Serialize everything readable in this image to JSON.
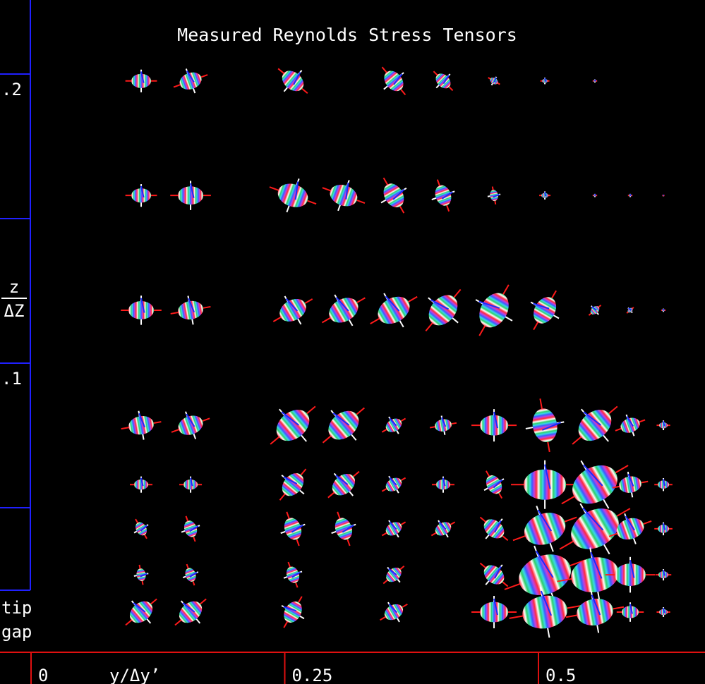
{
  "chart_data": {
    "type": "glyph",
    "title": "Measured Reynolds Stress Tensors",
    "x_label": "y/Δy’",
    "y_label": {
      "numerator": "z",
      "denominator": "ΔZ"
    },
    "annotation": [
      "tip",
      "gap"
    ],
    "xlim": [
      -0.0306,
      0.6641
    ],
    "ylim": [
      0,
      0.2256
    ],
    "xticks": [
      0,
      0.25,
      0.5
    ],
    "yticks": [
      {
        "value": 0.2,
        "label": ".2"
      },
      {
        "value": 0.1,
        "label": ".1"
      }
    ],
    "yticks_minor": [
      0.15,
      0.05
    ],
    "glyphs": {
      "x": [
        0.1085,
        0.1572,
        0.258,
        0.3574,
        0.4061,
        0.4562,
        0.5063,
        0.5556,
        0.1085,
        0.1572,
        0.258,
        0.308,
        0.3574,
        0.4061,
        0.4562,
        0.5063,
        0.5556,
        0.5904,
        0.6231,
        0.1085,
        0.1572,
        0.258,
        0.308,
        0.3574,
        0.4061,
        0.4562,
        0.5063,
        0.5556,
        0.5904,
        0.6231,
        0.1085,
        0.1572,
        0.258,
        0.308,
        0.3574,
        0.4061,
        0.4562,
        0.5063,
        0.5556,
        0.5904,
        0.6231,
        0.1085,
        0.1572,
        0.258,
        0.308,
        0.3574,
        0.4061,
        0.4562,
        0.5063,
        0.5556,
        0.5904,
        0.6231,
        0.1085,
        0.1572,
        0.258,
        0.308,
        0.3574,
        0.4061,
        0.4562,
        0.5063,
        0.5556,
        0.5904,
        0.6231,
        0.1085,
        0.1572,
        0.258,
        0.3574,
        0.4562,
        0.5063,
        0.5556,
        0.5904,
        0.6231,
        0.1085,
        0.1572,
        0.258,
        0.3574,
        0.4562,
        0.5063,
        0.5556,
        0.5904,
        0.6231
      ],
      "z": [
        0.1976,
        0.1976,
        0.1976,
        0.1976,
        0.1976,
        0.1976,
        0.1976,
        0.1976,
        0.158,
        0.158,
        0.158,
        0.158,
        0.158,
        0.158,
        0.158,
        0.158,
        0.158,
        0.158,
        0.158,
        0.1183,
        0.1183,
        0.1183,
        0.1183,
        0.1183,
        0.1183,
        0.1183,
        0.1183,
        0.1183,
        0.1183,
        0.1183,
        0.0785,
        0.0785,
        0.0785,
        0.0785,
        0.0785,
        0.0785,
        0.0785,
        0.0785,
        0.0785,
        0.0785,
        0.0785,
        0.058,
        0.058,
        0.058,
        0.058,
        0.058,
        0.058,
        0.058,
        0.058,
        0.058,
        0.058,
        0.058,
        0.0427,
        0.0427,
        0.0427,
        0.0427,
        0.0427,
        0.0427,
        0.0427,
        0.0427,
        0.0427,
        0.0427,
        0.0427,
        0.0268,
        0.0268,
        0.0268,
        0.0268,
        0.0268,
        0.0268,
        0.0268,
        0.0268,
        0.0268,
        0.0139,
        0.0139,
        0.0139,
        0.0139,
        0.0139,
        0.0139,
        0.0139,
        0.0139,
        0.0139
      ],
      "size": [
        14,
        16,
        17,
        16,
        12,
        6,
        4,
        2,
        14,
        18,
        22,
        20,
        18,
        15,
        8,
        5,
        2,
        2,
        1,
        18,
        18,
        20,
        22,
        24,
        24,
        26,
        20,
        7,
        4,
        2,
        18,
        18,
        26,
        24,
        12,
        12,
        20,
        24,
        26,
        14,
        6,
        10,
        10,
        18,
        18,
        12,
        10,
        14,
        30,
        34,
        16,
        8,
        10,
        12,
        16,
        16,
        12,
        12,
        16,
        30,
        36,
        20,
        8,
        9,
        10,
        12,
        12,
        16,
        38,
        34,
        22,
        7,
        18,
        18,
        16,
        14,
        20,
        32,
        26,
        12,
        6
      ],
      "angle": [
        0,
        -20,
        40,
        50,
        45,
        30,
        0,
        0,
        0,
        0,
        20,
        20,
        60,
        70,
        80,
        0,
        0,
        0,
        0,
        0,
        -10,
        -30,
        -30,
        -30,
        -50,
        -60,
        -60,
        -40,
        -40,
        0,
        -10,
        -20,
        -40,
        -40,
        -30,
        -10,
        0,
        80,
        -40,
        -20,
        0,
        0,
        0,
        -50,
        -40,
        -30,
        0,
        60,
        0,
        -30,
        -10,
        0,
        60,
        70,
        70,
        70,
        -30,
        -30,
        40,
        -20,
        -30,
        -20,
        0,
        80,
        70,
        70,
        -40,
        40,
        -20,
        -10,
        0,
        0,
        -40,
        -40,
        -60,
        -30,
        0,
        -10,
        -10,
        0,
        0
      ]
    }
  }
}
